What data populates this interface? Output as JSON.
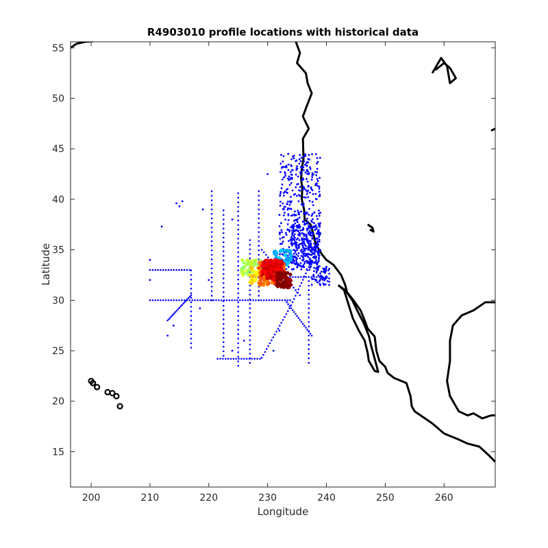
{
  "chart_data": {
    "type": "scatter",
    "title": "R4903010 profile locations with historical data",
    "xlabel": "Longitude",
    "ylabel": "Latitude",
    "xlim": [
      196.5,
      268.7
    ],
    "ylim": [
      11.5,
      55.6
    ],
    "xticks": [
      200,
      210,
      220,
      230,
      240,
      250,
      260
    ],
    "yticks": [
      15,
      20,
      25,
      30,
      35,
      40,
      45,
      50,
      55
    ],
    "grid": false,
    "legend": "none",
    "colors": {
      "historical": "#0000ff",
      "coastline": "#000000",
      "profile_colormap": [
        "#00ffff",
        "#7fff7f",
        "#ffff00",
        "#ff7f00",
        "#ff0000",
        "#7f0000"
      ]
    },
    "series": [
      {
        "label_key": "historical",
        "role": "historical-data",
        "lines": [
          {
            "axis": "lat",
            "at": 30.0,
            "from": 210.0,
            "to": 234.0
          },
          {
            "axis": "lat",
            "at": 33.0,
            "from": 210.0,
            "to": 217.0
          },
          {
            "axis": "lat",
            "at": 24.2,
            "from": 221.5,
            "to": 229.0
          },
          {
            "axis": "lat",
            "at": 32.3,
            "from": 228.0,
            "to": 239.5
          },
          {
            "axis": "lon",
            "at": 225.0,
            "from": 23.5,
            "to": 40.8
          },
          {
            "axis": "lon",
            "at": 222.5,
            "from": 24.5,
            "to": 39.0
          },
          {
            "axis": "lon",
            "at": 217.0,
            "from": 25.3,
            "to": 33.0
          },
          {
            "axis": "lon",
            "at": 227.0,
            "from": 23.8,
            "to": 36.0
          },
          {
            "axis": "lon",
            "at": 237.0,
            "from": 23.8,
            "to": 32.0
          },
          {
            "axis": "lon",
            "at": 220.5,
            "from": 30.0,
            "to": 41.0
          },
          {
            "axis": "lon",
            "at": 228.5,
            "from": 30.0,
            "to": 41.0
          },
          {
            "axis": "diag",
            "from": [
              238.5,
              35.2
            ],
            "to": [
              234.0,
              29.5
            ]
          },
          {
            "axis": "diag",
            "from": [
              234.0,
              29.5
            ],
            "to": [
              229.0,
              24.3
            ]
          },
          {
            "axis": "diag",
            "from": [
              229.0,
              35.0
            ],
            "to": [
              235.5,
              30.5
            ]
          },
          {
            "axis": "diag",
            "from": [
              213.0,
              28.0
            ],
            "to": [
              217.0,
              30.5
            ]
          },
          {
            "axis": "diag",
            "from": [
              233.0,
              30.0
            ],
            "to": [
              237.5,
              26.5
            ]
          }
        ],
        "clusters": [
          {
            "lon": [
              232.0,
              239.0
            ],
            "lat": [
              33.0,
              44.5
            ],
            "n": 420
          },
          {
            "lon": [
              234.0,
              239.0
            ],
            "lat": [
              33.5,
              37.5
            ],
            "n": 260
          },
          {
            "lon": [
              237.5,
              240.5
            ],
            "lat": [
              31.5,
              33.5
            ],
            "n": 70
          }
        ],
        "points": [
          [
            212.0,
            37.3
          ],
          [
            214.5,
            39.6
          ],
          [
            215.0,
            39.3
          ],
          [
            215.5,
            39.8
          ],
          [
            219.0,
            39.0
          ],
          [
            213.0,
            26.5
          ],
          [
            214.0,
            27.5
          ],
          [
            210.0,
            32.0
          ],
          [
            210.0,
            34.0
          ],
          [
            220.0,
            32.0
          ],
          [
            218.5,
            29.2
          ],
          [
            224.0,
            25.0
          ],
          [
            226.0,
            26.0
          ],
          [
            231.0,
            25.0
          ],
          [
            232.0,
            27.0
          ],
          [
            230.0,
            42.5
          ],
          [
            233.5,
            44.5
          ],
          [
            232.5,
            43.2
          ],
          [
            236.0,
            42.0
          ],
          [
            224.0,
            38.0
          ]
        ]
      },
      {
        "role": "float-profiles",
        "colormap": "jet",
        "clusters": [
          {
            "lon": [
              231.0,
              234.0
            ],
            "lat": [
              33.5,
              35.0
            ],
            "n": 50,
            "c": 0.3
          },
          {
            "lon": [
              225.5,
              229.0
            ],
            "lat": [
              32.5,
              34.0
            ],
            "n": 60,
            "c": 0.55
          },
          {
            "lon": [
              227.0,
              230.0
            ],
            "lat": [
              31.5,
              33.5
            ],
            "n": 60,
            "c": 0.66
          },
          {
            "lon": [
              228.5,
              233.0
            ],
            "lat": [
              31.5,
              33.8
            ],
            "n": 120,
            "c": 0.78
          },
          {
            "lon": [
              229.0,
              232.5
            ],
            "lat": [
              32.0,
              34.0
            ],
            "n": 180,
            "c": 0.9
          },
          {
            "lon": [
              231.5,
              234.0
            ],
            "lat": [
              31.2,
              32.8
            ],
            "n": 80,
            "c": 1.0
          }
        ]
      }
    ]
  }
}
